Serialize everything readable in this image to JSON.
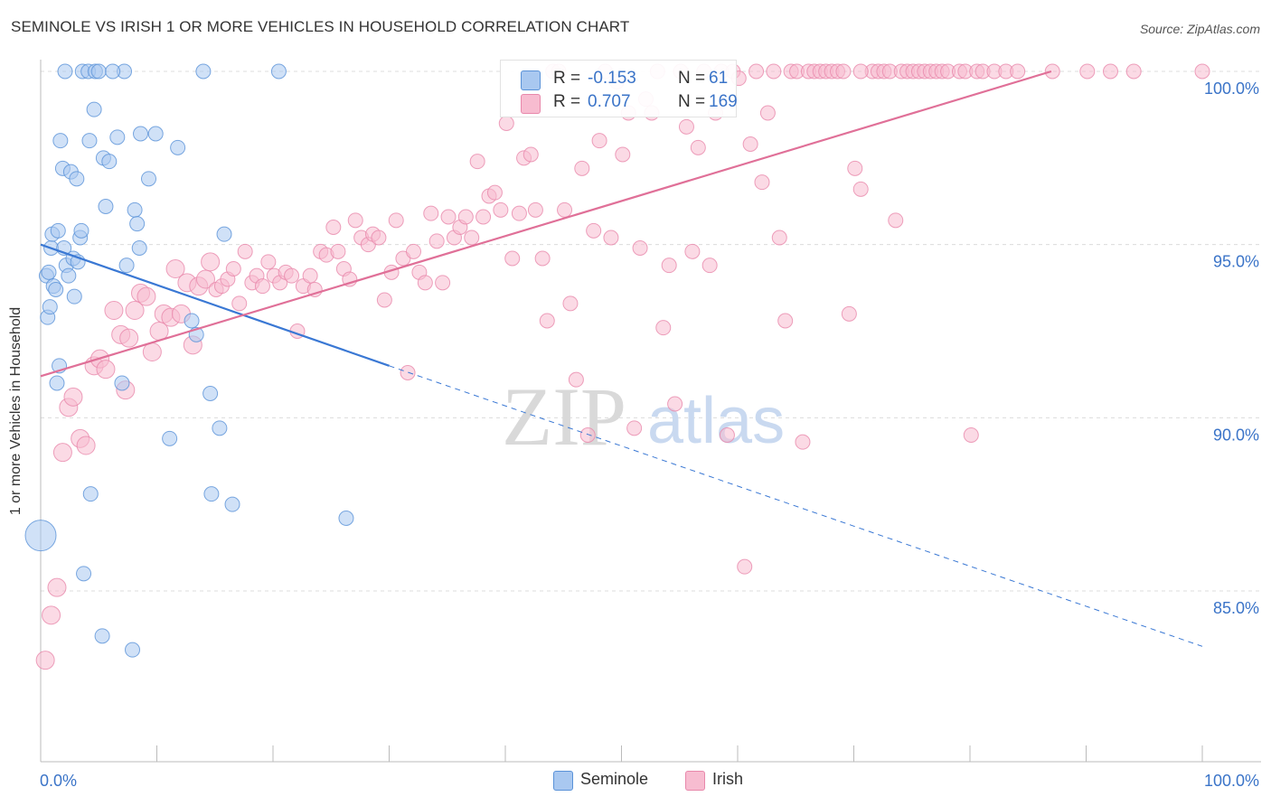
{
  "title": "SEMINOLE VS IRISH 1 OR MORE VEHICLES IN HOUSEHOLD CORRELATION CHART",
  "source": "Source: ZipAtlas.com",
  "watermark": {
    "zip": "ZIP",
    "atlas": "atlas"
  },
  "legend": {
    "r_label": "R =",
    "n_label": "N =",
    "rows": [
      {
        "r": "-0.153",
        "n": "61"
      },
      {
        "r": "0.707",
        "n": "169"
      }
    ]
  },
  "colors": {
    "seminole_fill": "#a9c8f0",
    "seminole_stroke": "#5a92d8",
    "seminole_line": "#3a78d4",
    "irish_fill": "#f7bcd0",
    "irish_stroke": "#e888ab",
    "irish_line": "#e07098",
    "grid": "#dcdcdc",
    "tick_label": "#3b74c8"
  },
  "chart_data": {
    "type": "scatter",
    "title": "SEMINOLE VS IRISH 1 OR MORE VEHICLES IN HOUSEHOLD CORRELATION CHART",
    "xlabel": "",
    "ylabel": "1 or more Vehicles in Household",
    "xlim": [
      0,
      100
    ],
    "ylim": [
      80.6,
      100.6
    ],
    "x_tick_labels": [
      "0.0%",
      "100.0%"
    ],
    "y_ticks": [
      85,
      90,
      95,
      100
    ],
    "y_tick_labels": [
      "85.0%",
      "90.0%",
      "95.0%",
      "100.0%"
    ],
    "series": [
      {
        "name": "Seminole",
        "r": -0.153,
        "n": 61,
        "trend": {
          "x0": 0,
          "y0": 95.0,
          "x1": 30,
          "y1": 91.5,
          "dash_to_x": 100,
          "dash_to_y": 83.4
        },
        "points": [
          [
            0,
            86.6
          ],
          [
            0.5,
            94.1
          ],
          [
            0.6,
            92.9
          ],
          [
            0.8,
            93.2
          ],
          [
            0.9,
            94.9
          ],
          [
            1.0,
            95.3
          ],
          [
            1.1,
            93.8
          ],
          [
            1.3,
            93.7
          ],
          [
            1.5,
            95.4
          ],
          [
            1.6,
            91.5
          ],
          [
            1.7,
            98.0
          ],
          [
            1.9,
            97.2
          ],
          [
            2.0,
            94.9
          ],
          [
            2.2,
            94.4
          ],
          [
            2.4,
            94.1
          ],
          [
            2.6,
            97.1
          ],
          [
            2.8,
            94.6
          ],
          [
            2.9,
            93.5
          ],
          [
            3.1,
            96.9
          ],
          [
            3.2,
            94.5
          ],
          [
            3.4,
            95.2
          ],
          [
            3.5,
            95.4
          ],
          [
            3.6,
            100.0
          ],
          [
            3.7,
            85.5
          ],
          [
            4.1,
            100.0
          ],
          [
            4.2,
            98.0
          ],
          [
            4.3,
            87.8
          ],
          [
            4.6,
            98.9
          ],
          [
            4.7,
            100.0
          ],
          [
            5.0,
            100.0
          ],
          [
            5.3,
            83.7
          ],
          [
            5.4,
            97.5
          ],
          [
            5.6,
            96.1
          ],
          [
            5.9,
            97.4
          ],
          [
            6.6,
            98.1
          ],
          [
            7.0,
            91.0
          ],
          [
            7.2,
            100.0
          ],
          [
            7.4,
            94.4
          ],
          [
            7.9,
            83.3
          ],
          [
            8.1,
            96.0
          ],
          [
            8.3,
            95.6
          ],
          [
            8.5,
            94.9
          ],
          [
            8.6,
            98.2
          ],
          [
            9.3,
            96.9
          ],
          [
            9.9,
            98.2
          ],
          [
            11.1,
            89.4
          ],
          [
            11.8,
            97.8
          ],
          [
            13.0,
            92.8
          ],
          [
            13.4,
            92.4
          ],
          [
            14.0,
            100.0
          ],
          [
            14.6,
            90.7
          ],
          [
            14.7,
            87.8
          ],
          [
            15.4,
            89.7
          ],
          [
            15.8,
            95.3
          ],
          [
            16.5,
            87.5
          ],
          [
            20.5,
            100.0
          ],
          [
            26.3,
            87.1
          ],
          [
            0.7,
            94.2
          ],
          [
            2.1,
            100.0
          ],
          [
            1.4,
            91.0
          ],
          [
            6.2,
            100.0
          ]
        ]
      },
      {
        "name": "Irish",
        "r": 0.707,
        "n": 169,
        "trend": {
          "x0": 0,
          "y0": 91.2,
          "x1": 87,
          "y1": 100.0
        },
        "points": [
          [
            0.4,
            83.0
          ],
          [
            0.9,
            84.3
          ],
          [
            1.4,
            85.1
          ],
          [
            1.9,
            89.0
          ],
          [
            2.4,
            90.3
          ],
          [
            2.8,
            90.6
          ],
          [
            3.4,
            89.4
          ],
          [
            3.9,
            89.2
          ],
          [
            4.6,
            91.5
          ],
          [
            5.1,
            91.7
          ],
          [
            5.6,
            91.4
          ],
          [
            6.3,
            93.1
          ],
          [
            6.9,
            92.4
          ],
          [
            7.3,
            90.8
          ],
          [
            7.6,
            92.3
          ],
          [
            8.1,
            93.1
          ],
          [
            8.6,
            93.6
          ],
          [
            9.1,
            93.5
          ],
          [
            9.6,
            91.9
          ],
          [
            10.2,
            92.5
          ],
          [
            10.6,
            93.0
          ],
          [
            11.2,
            92.9
          ],
          [
            11.6,
            94.3
          ],
          [
            12.1,
            93.0
          ],
          [
            12.6,
            93.9
          ],
          [
            13.1,
            92.1
          ],
          [
            13.6,
            93.8
          ],
          [
            14.2,
            94.0
          ],
          [
            14.6,
            94.5
          ],
          [
            15.1,
            93.7
          ],
          [
            15.6,
            93.8
          ],
          [
            16.1,
            94.0
          ],
          [
            16.6,
            94.3
          ],
          [
            17.1,
            93.3
          ],
          [
            17.6,
            94.8
          ],
          [
            18.2,
            93.9
          ],
          [
            18.6,
            94.1
          ],
          [
            19.1,
            93.8
          ],
          [
            19.6,
            94.5
          ],
          [
            20.1,
            94.1
          ],
          [
            20.6,
            93.9
          ],
          [
            21.1,
            94.2
          ],
          [
            21.6,
            94.1
          ],
          [
            22.1,
            92.5
          ],
          [
            22.6,
            93.8
          ],
          [
            23.2,
            94.1
          ],
          [
            23.6,
            93.7
          ],
          [
            24.1,
            94.8
          ],
          [
            24.6,
            94.7
          ],
          [
            25.2,
            95.5
          ],
          [
            25.6,
            94.8
          ],
          [
            26.1,
            94.3
          ],
          [
            26.6,
            94.0
          ],
          [
            27.1,
            95.7
          ],
          [
            27.6,
            95.2
          ],
          [
            28.2,
            95.0
          ],
          [
            28.6,
            95.3
          ],
          [
            29.1,
            95.2
          ],
          [
            29.6,
            93.4
          ],
          [
            30.2,
            94.2
          ],
          [
            30.6,
            95.7
          ],
          [
            31.2,
            94.6
          ],
          [
            31.6,
            91.3
          ],
          [
            32.1,
            94.8
          ],
          [
            32.6,
            94.2
          ],
          [
            33.1,
            93.9
          ],
          [
            33.6,
            95.9
          ],
          [
            34.1,
            95.1
          ],
          [
            34.6,
            93.9
          ],
          [
            35.1,
            95.8
          ],
          [
            35.6,
            95.2
          ],
          [
            36.1,
            95.5
          ],
          [
            36.6,
            95.8
          ],
          [
            37.1,
            95.2
          ],
          [
            37.6,
            97.4
          ],
          [
            38.1,
            95.8
          ],
          [
            38.6,
            96.4
          ],
          [
            39.1,
            96.5
          ],
          [
            39.6,
            96.0
          ],
          [
            40.1,
            98.5
          ],
          [
            40.6,
            94.6
          ],
          [
            41.2,
            95.9
          ],
          [
            41.6,
            97.5
          ],
          [
            42.2,
            97.6
          ],
          [
            42.6,
            96.0
          ],
          [
            43.2,
            94.6
          ],
          [
            43.6,
            92.8
          ],
          [
            44.1,
            100.0
          ],
          [
            44.6,
            100.0
          ],
          [
            45.1,
            96.0
          ],
          [
            45.6,
            93.3
          ],
          [
            46.1,
            91.1
          ],
          [
            46.6,
            97.2
          ],
          [
            47.1,
            89.5
          ],
          [
            47.6,
            95.4
          ],
          [
            48.1,
            98.0
          ],
          [
            48.6,
            100.0
          ],
          [
            49.1,
            95.2
          ],
          [
            49.6,
            99.7
          ],
          [
            50.1,
            97.6
          ],
          [
            50.6,
            98.8
          ],
          [
            51.1,
            89.7
          ],
          [
            51.6,
            94.9
          ],
          [
            52.1,
            99.2
          ],
          [
            52.6,
            98.8
          ],
          [
            53.1,
            100.0
          ],
          [
            53.6,
            92.6
          ],
          [
            54.1,
            94.4
          ],
          [
            54.6,
            90.4
          ],
          [
            55.1,
            100.0
          ],
          [
            55.6,
            98.4
          ],
          [
            56.1,
            94.8
          ],
          [
            56.6,
            97.8
          ],
          [
            57.1,
            100.0
          ],
          [
            57.6,
            94.4
          ],
          [
            58.1,
            98.8
          ],
          [
            58.6,
            100.0
          ],
          [
            59.1,
            89.5
          ],
          [
            59.6,
            100.0
          ],
          [
            60.1,
            99.8
          ],
          [
            60.6,
            85.7
          ],
          [
            61.1,
            97.9
          ],
          [
            61.6,
            100.0
          ],
          [
            62.1,
            96.8
          ],
          [
            62.6,
            98.8
          ],
          [
            63.1,
            100.0
          ],
          [
            63.6,
            95.2
          ],
          [
            64.1,
            92.8
          ],
          [
            64.6,
            100.0
          ],
          [
            65.1,
            100.0
          ],
          [
            65.6,
            89.3
          ],
          [
            66.1,
            100.0
          ],
          [
            66.6,
            100.0
          ],
          [
            67.1,
            100.0
          ],
          [
            67.6,
            100.0
          ],
          [
            68.1,
            100.0
          ],
          [
            68.6,
            100.0
          ],
          [
            69.1,
            100.0
          ],
          [
            69.6,
            93.0
          ],
          [
            70.1,
            97.2
          ],
          [
            70.6,
            96.6
          ],
          [
            71.6,
            100.0
          ],
          [
            72.1,
            100.0
          ],
          [
            72.6,
            100.0
          ],
          [
            73.1,
            100.0
          ],
          [
            73.6,
            95.7
          ],
          [
            74.1,
            100.0
          ],
          [
            74.6,
            100.0
          ],
          [
            75.1,
            100.0
          ],
          [
            75.6,
            100.0
          ],
          [
            76.1,
            100.0
          ],
          [
            76.6,
            100.0
          ],
          [
            77.1,
            100.0
          ],
          [
            77.6,
            100.0
          ],
          [
            78.1,
            100.0
          ],
          [
            79.1,
            100.0
          ],
          [
            79.6,
            100.0
          ],
          [
            80.1,
            89.5
          ],
          [
            80.6,
            100.0
          ],
          [
            81.1,
            100.0
          ],
          [
            82.1,
            100.0
          ],
          [
            83.1,
            100.0
          ],
          [
            84.1,
            100.0
          ],
          [
            87.1,
            100.0
          ],
          [
            90.1,
            100.0
          ],
          [
            92.1,
            100.0
          ],
          [
            94.1,
            100.0
          ],
          [
            100.0,
            100.0
          ],
          [
            70.6,
            100.0
          ]
        ]
      }
    ]
  },
  "bottom_legend": [
    {
      "label": "Seminole"
    },
    {
      "label": "Irish"
    }
  ]
}
